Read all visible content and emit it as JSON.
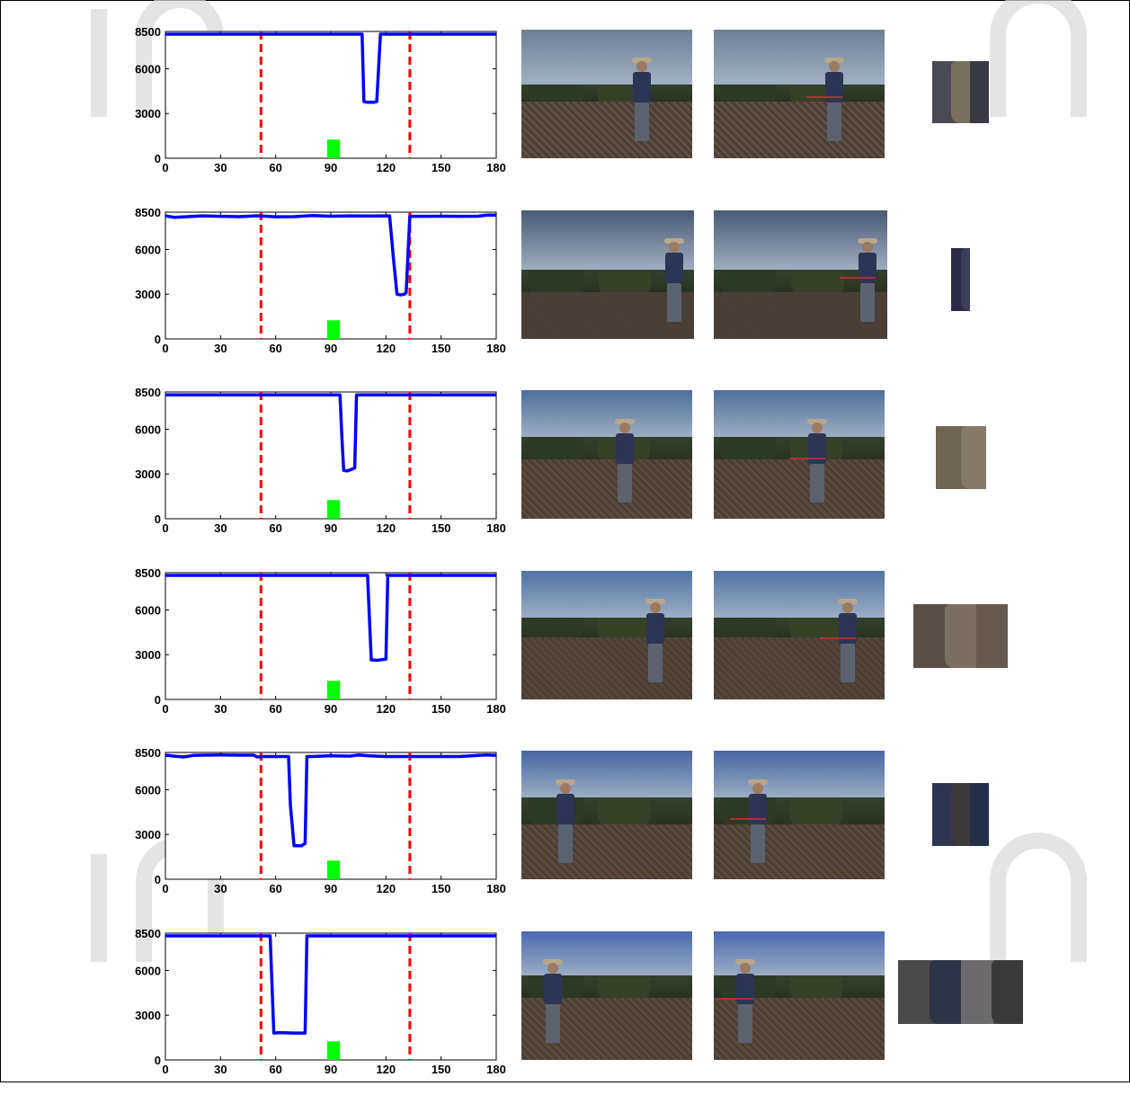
{
  "chart_data": [
    {
      "type": "line",
      "xlim": [
        0,
        180
      ],
      "ylim": [
        0,
        8500
      ],
      "xticks": [
        "0",
        "30",
        "60",
        "90",
        "120",
        "150",
        "180"
      ],
      "yticks": [
        "0",
        "3000",
        "6000",
        "8500"
      ],
      "vlines": [
        52,
        133
      ],
      "marker_bar": {
        "x": [
          88,
          95
        ],
        "y": [
          0,
          1250
        ]
      },
      "series": [
        {
          "x": [
            0,
            107,
            108,
            110,
            113,
            115,
            117,
            180
          ],
          "y": [
            8320,
            8320,
            3800,
            3750,
            3750,
            3800,
            8320,
            8320
          ]
        }
      ]
    },
    {
      "type": "line",
      "xlim": [
        0,
        180
      ],
      "ylim": [
        0,
        8500
      ],
      "xticks": [
        "0",
        "30",
        "60",
        "90",
        "120",
        "150",
        "180"
      ],
      "yticks": [
        "0",
        "3000",
        "6000",
        "8500"
      ],
      "vlines": [
        52,
        133
      ],
      "marker_bar": {
        "x": [
          88,
          95
        ],
        "y": [
          0,
          1250
        ]
      },
      "series": [
        {
          "x": [
            0,
            5,
            10,
            20,
            30,
            40,
            50,
            60,
            70,
            80,
            90,
            100,
            110,
            122,
            124,
            126,
            128,
            130,
            131,
            133,
            140,
            150,
            160,
            170,
            175,
            180
          ],
          "y": [
            8250,
            8150,
            8180,
            8250,
            8220,
            8200,
            8260,
            8190,
            8200,
            8270,
            8230,
            8250,
            8240,
            8250,
            5500,
            3000,
            2950,
            3000,
            3100,
            8230,
            8220,
            8230,
            8220,
            8230,
            8300,
            8310
          ]
        }
      ]
    },
    {
      "type": "line",
      "xlim": [
        0,
        180
      ],
      "ylim": [
        0,
        8500
      ],
      "xticks": [
        "0",
        "30",
        "60",
        "90",
        "120",
        "150",
        "180"
      ],
      "yticks": [
        "0",
        "3000",
        "6000",
        "8500"
      ],
      "vlines": [
        52,
        133
      ],
      "marker_bar": {
        "x": [
          88,
          95
        ],
        "y": [
          0,
          1250
        ]
      },
      "series": [
        {
          "x": [
            0,
            95,
            96,
            97,
            99,
            103,
            104,
            180
          ],
          "y": [
            8300,
            8300,
            5500,
            3250,
            3200,
            3400,
            8300,
            8300
          ]
        }
      ]
    },
    {
      "type": "line",
      "xlim": [
        0,
        180
      ],
      "ylim": [
        0,
        8500
      ],
      "xticks": [
        "0",
        "30",
        "60",
        "90",
        "120",
        "150",
        "180"
      ],
      "yticks": [
        "0",
        "3000",
        "6000",
        "8500"
      ],
      "vlines": [
        52,
        133
      ],
      "marker_bar": {
        "x": [
          88,
          95
        ],
        "y": [
          0,
          1250
        ]
      },
      "series": [
        {
          "x": [
            0,
            110,
            111,
            112,
            115,
            120,
            121,
            180
          ],
          "y": [
            8320,
            8320,
            5500,
            2650,
            2620,
            2700,
            8320,
            8320
          ]
        }
      ]
    },
    {
      "type": "line",
      "xlim": [
        0,
        180
      ],
      "ylim": [
        0,
        8500
      ],
      "xticks": [
        "0",
        "30",
        "60",
        "90",
        "120",
        "150",
        "180"
      ],
      "yticks": [
        "0",
        "3000",
        "6000",
        "8500"
      ],
      "vlines": [
        52,
        133
      ],
      "marker_bar": {
        "x": [
          88,
          95
        ],
        "y": [
          0,
          1250
        ]
      },
      "series": [
        {
          "x": [
            0,
            5,
            10,
            15,
            20,
            30,
            40,
            48,
            50,
            52,
            67,
            68,
            70,
            74,
            76,
            77,
            80,
            90,
            100,
            105,
            110,
            120,
            140,
            160,
            170,
            175,
            180
          ],
          "y": [
            8320,
            8250,
            8200,
            8300,
            8320,
            8330,
            8320,
            8320,
            8200,
            8230,
            8230,
            5000,
            2250,
            2250,
            2400,
            8230,
            8230,
            8280,
            8250,
            8330,
            8280,
            8230,
            8230,
            8230,
            8300,
            8330,
            8300
          ]
        }
      ]
    },
    {
      "type": "line",
      "xlim": [
        0,
        180
      ],
      "ylim": [
        0,
        8500
      ],
      "xticks": [
        "0",
        "30",
        "60",
        "90",
        "120",
        "150",
        "180"
      ],
      "yticks": [
        "0",
        "3000",
        "6000",
        "8500"
      ],
      "vlines": [
        52,
        133
      ],
      "marker_bar": {
        "x": [
          88,
          95
        ],
        "y": [
          0,
          1250
        ]
      },
      "series": [
        {
          "x": [
            0,
            57,
            58,
            59,
            62,
            70,
            76,
            77,
            180
          ],
          "y": [
            8320,
            8320,
            5000,
            1800,
            1830,
            1800,
            1800,
            8320,
            8320
          ]
        }
      ]
    }
  ],
  "colors": {
    "series_line": "#0000ff",
    "vline": "#ff0000",
    "marker_bar": "#00ff00",
    "watermark": "#d9d9d9"
  },
  "photos": [
    {
      "scene": "field-man-center",
      "marked": false
    },
    {
      "scene": "field-man-center",
      "marked": true
    },
    {
      "scene": "field-man-right-car",
      "marked": false
    },
    {
      "scene": "field-man-right-car",
      "marked": true
    },
    {
      "scene": "field-man-center-2",
      "marked": false
    },
    {
      "scene": "field-man-center-2",
      "marked": true
    },
    {
      "scene": "field-man-right-2",
      "marked": false
    },
    {
      "scene": "field-man-right-2",
      "marked": true
    },
    {
      "scene": "field-man-left",
      "marked": false
    },
    {
      "scene": "field-man-left",
      "marked": true
    },
    {
      "scene": "field-man-left-close",
      "marked": false
    },
    {
      "scene": "field-man-left-close",
      "marked": true
    }
  ],
  "patches": [
    {
      "colors": [
        "#4a4a55",
        "#7a7060",
        "#3a3a44"
      ]
    },
    {
      "colors": [
        "#2a2a44",
        "#3a3e5a"
      ]
    },
    {
      "colors": [
        "#6f6555",
        "#85796a"
      ]
    },
    {
      "colors": [
        "#5a5048",
        "#7a6e62",
        "#66594f"
      ]
    },
    {
      "colors": [
        "#2f3550",
        "#3c3a3a",
        "#24304a"
      ]
    },
    {
      "colors": [
        "#4a4a4a",
        "#2e3548",
        "#6c6a6a",
        "#3a3a3a"
      ]
    }
  ]
}
